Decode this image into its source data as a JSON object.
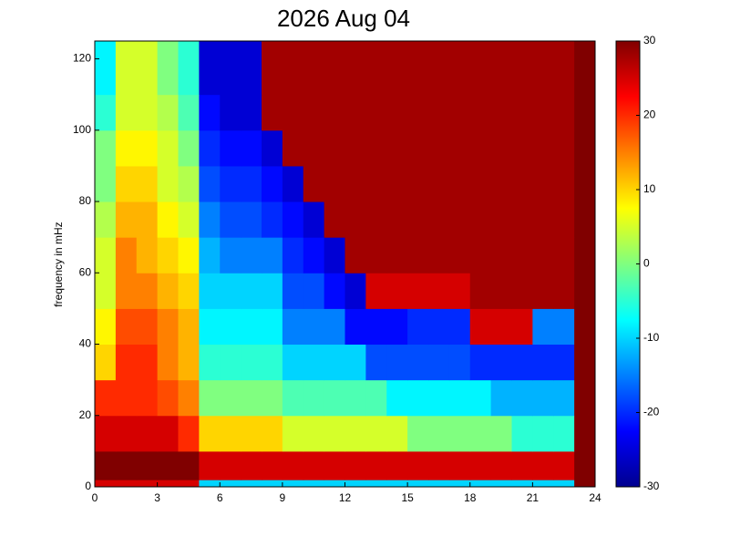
{
  "chart_data": {
    "type": "heatmap",
    "title": "2026 Aug 04",
    "y_label": "frequency in mHz",
    "x_edges": [
      0,
      1,
      2,
      3,
      4,
      5,
      6,
      7,
      8,
      9,
      10,
      11,
      12,
      13,
      14,
      15,
      16,
      17,
      18,
      19,
      20,
      21,
      22,
      23,
      24
    ],
    "y_edges": [
      0,
      2,
      10,
      20,
      30,
      40,
      50,
      60,
      70,
      80,
      90,
      100,
      110,
      125
    ],
    "z": [
      [
        25,
        25,
        25,
        25,
        25,
        -10,
        -10,
        -10,
        -10,
        -10,
        -10,
        -10,
        -10,
        -10,
        -10,
        -10,
        -10,
        -10,
        -10,
        -10,
        -10,
        -10,
        -10,
        30
      ],
      [
        30,
        30,
        30,
        30,
        30,
        25,
        25,
        25,
        25,
        25,
        25,
        25,
        25,
        25,
        25,
        25,
        25,
        25,
        25,
        25,
        25,
        25,
        25,
        30
      ],
      [
        25,
        25,
        25,
        25,
        20,
        10,
        10,
        10,
        10,
        5,
        5,
        5,
        5,
        5,
        5,
        0,
        0,
        0,
        0,
        0,
        -5,
        -5,
        -5,
        30
      ],
      [
        20,
        20,
        20,
        18,
        15,
        0,
        0,
        0,
        0,
        -3,
        -3,
        -3,
        -3,
        -3,
        -8,
        -8,
        -8,
        -8,
        -8,
        -12,
        -12,
        -12,
        -12,
        30
      ],
      [
        10,
        20,
        20,
        15,
        12,
        -5,
        -5,
        -5,
        -5,
        -10,
        -10,
        -10,
        -10,
        -18,
        -18,
        -18,
        -18,
        -18,
        -20,
        -20,
        -20,
        -20,
        -20,
        30
      ],
      [
        8,
        18,
        18,
        15,
        12,
        -8,
        -8,
        -8,
        -8,
        -15,
        -15,
        -15,
        -22,
        -22,
        -22,
        -20,
        -20,
        -20,
        25,
        25,
        25,
        -15,
        -15,
        30
      ],
      [
        5,
        15,
        15,
        12,
        10,
        -10,
        -10,
        -10,
        -10,
        -18,
        -18,
        -22,
        -25,
        25,
        25,
        25,
        25,
        25,
        28,
        28,
        28,
        28,
        28,
        30
      ],
      [
        5,
        15,
        12,
        10,
        8,
        -12,
        -15,
        -15,
        -15,
        -20,
        -22,
        -25,
        28,
        28,
        28,
        28,
        28,
        28,
        28,
        28,
        28,
        28,
        28,
        30
      ],
      [
        3,
        12,
        12,
        8,
        5,
        -15,
        -18,
        -18,
        -20,
        -22,
        -25,
        28,
        28,
        28,
        28,
        28,
        28,
        28,
        28,
        28,
        28,
        28,
        28,
        30
      ],
      [
        0,
        10,
        10,
        5,
        3,
        -18,
        -20,
        -20,
        -22,
        -25,
        28,
        28,
        28,
        28,
        28,
        28,
        28,
        28,
        28,
        28,
        28,
        28,
        28,
        30
      ],
      [
        0,
        8,
        8,
        5,
        0,
        -20,
        -22,
        -22,
        -25,
        28,
        28,
        28,
        28,
        28,
        28,
        28,
        28,
        28,
        28,
        28,
        28,
        28,
        28,
        30
      ],
      [
        -5,
        5,
        5,
        3,
        -3,
        -22,
        -25,
        -25,
        28,
        28,
        28,
        28,
        28,
        28,
        28,
        28,
        28,
        28,
        28,
        28,
        28,
        28,
        28,
        30
      ],
      [
        -8,
        5,
        5,
        0,
        -5,
        -25,
        -25,
        -25,
        28,
        28,
        28,
        28,
        28,
        28,
        28,
        28,
        28,
        28,
        28,
        28,
        28,
        28,
        28,
        30
      ]
    ],
    "xlim": [
      0,
      24
    ],
    "xticks": [
      0,
      3,
      6,
      9,
      12,
      15,
      18,
      21,
      24
    ],
    "ylim": [
      0,
      125
    ],
    "yticks": [
      0,
      20,
      40,
      60,
      80,
      100,
      120
    ],
    "clim": [
      -30,
      30
    ],
    "cticks": [
      -30,
      -20,
      -10,
      0,
      10,
      20,
      30
    ],
    "colormap": "jet"
  }
}
